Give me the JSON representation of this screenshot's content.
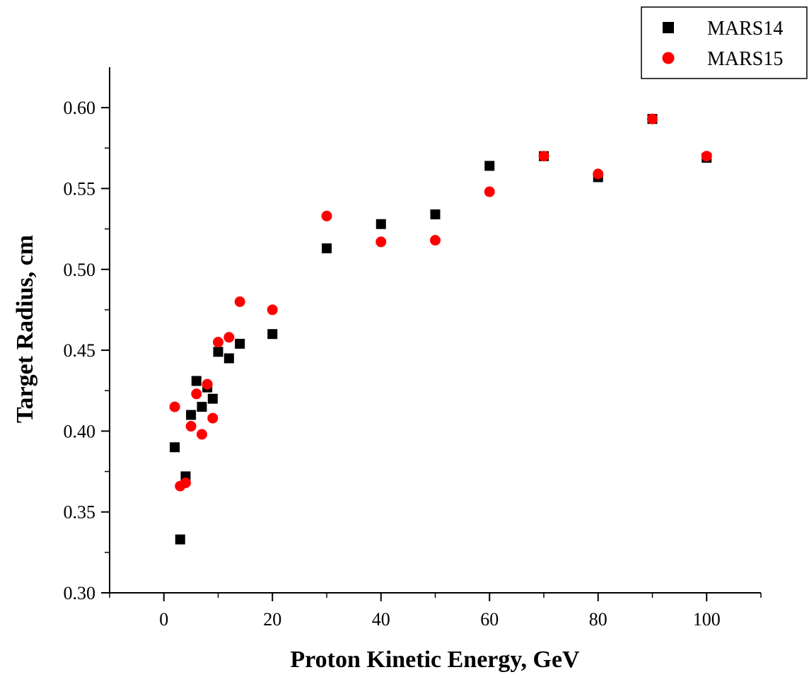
{
  "chart_data": {
    "type": "scatter",
    "title": "",
    "xlabel": "Proton Kinetic Energy, GeV",
    "ylabel": "Target Radius, cm",
    "xlim": [
      -10,
      110
    ],
    "ylim": [
      0.3,
      0.625
    ],
    "x_ticks": [
      "0",
      "20",
      "40",
      "60",
      "80",
      "100"
    ],
    "y_ticks": [
      "0.30",
      "0.35",
      "0.40",
      "0.45",
      "0.50",
      "0.55",
      "0.60"
    ],
    "grid": false,
    "legend_position": "top-right",
    "series": [
      {
        "name": "MARS14",
        "marker": "square",
        "color": "#000000",
        "points": [
          [
            2,
            0.39
          ],
          [
            3,
            0.333
          ],
          [
            4,
            0.372
          ],
          [
            5,
            0.41
          ],
          [
            6,
            0.431
          ],
          [
            7,
            0.415
          ],
          [
            8,
            0.427
          ],
          [
            9,
            0.42
          ],
          [
            10,
            0.449
          ],
          [
            12,
            0.445
          ],
          [
            14,
            0.454
          ],
          [
            20,
            0.46
          ],
          [
            30,
            0.513
          ],
          [
            40,
            0.528
          ],
          [
            50,
            0.534
          ],
          [
            60,
            0.564
          ],
          [
            70,
            0.57
          ],
          [
            80,
            0.557
          ],
          [
            90,
            0.593
          ],
          [
            100,
            0.569
          ]
        ]
      },
      {
        "name": "MARS15",
        "marker": "circle",
        "color": "#ff0000",
        "points": [
          [
            2,
            0.415
          ],
          [
            3,
            0.366
          ],
          [
            4,
            0.368
          ],
          [
            5,
            0.403
          ],
          [
            6,
            0.423
          ],
          [
            7,
            0.398
          ],
          [
            8,
            0.429
          ],
          [
            9,
            0.408
          ],
          [
            10,
            0.455
          ],
          [
            12,
            0.458
          ],
          [
            14,
            0.48
          ],
          [
            20,
            0.475
          ],
          [
            30,
            0.533
          ],
          [
            40,
            0.517
          ],
          [
            50,
            0.518
          ],
          [
            60,
            0.548
          ],
          [
            70,
            0.57
          ],
          [
            80,
            0.559
          ],
          [
            90,
            0.593
          ],
          [
            100,
            0.57
          ]
        ]
      }
    ]
  }
}
